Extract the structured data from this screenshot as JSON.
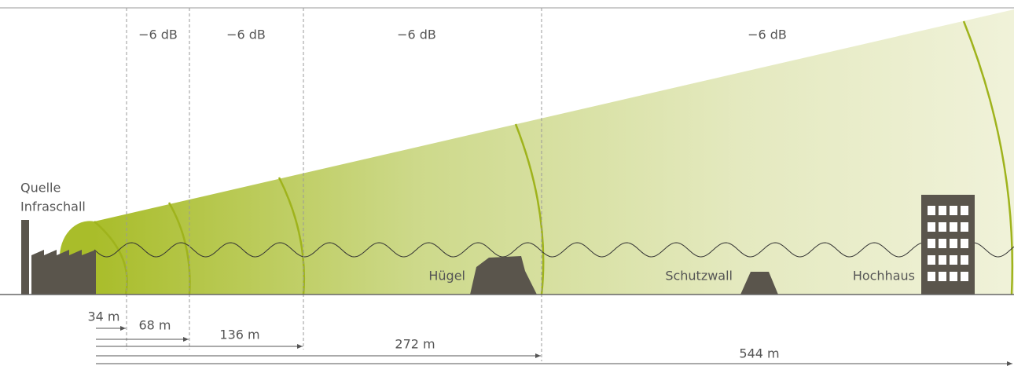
{
  "source_label": [
    "Quelle",
    "Infraschall"
  ],
  "attenuation_labels": [
    "−6 dB",
    "−6 dB",
    "−6 dB",
    "−6 dB"
  ],
  "obstacles": [
    "Hügel",
    "Schutzwall",
    "Hochhaus"
  ],
  "distances": [
    "34 m",
    "68 m",
    "136 m",
    "272 m",
    "544 m"
  ]
}
